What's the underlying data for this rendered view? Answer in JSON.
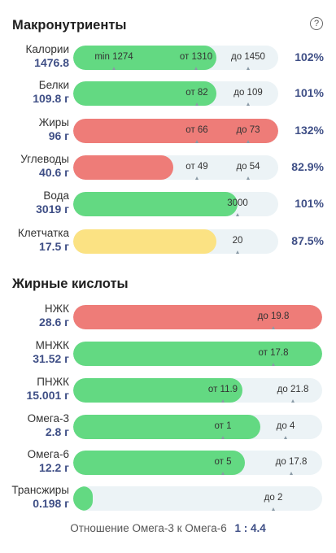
{
  "help_icon": "help-circle-icon",
  "macro": {
    "title": "Макронутриенты",
    "items": [
      {
        "name": "Калории",
        "amount": "1476.8",
        "percent": "102%",
        "fill_color": "green",
        "fill_fraction": 0.7,
        "marks": [
          {
            "text": "min 1274"
          },
          {
            "text": "от 1310"
          },
          {
            "text": "до 1450"
          }
        ]
      },
      {
        "name": "Белки",
        "amount": "109.8 г",
        "percent": "101%",
        "fill_color": "green",
        "fill_fraction": 0.7,
        "marks": [
          {
            "text": "от 82"
          },
          {
            "text": "до 109"
          }
        ]
      },
      {
        "name": "Жиры",
        "amount": "96 г",
        "percent": "132%",
        "fill_color": "red",
        "fill_fraction": 1.0,
        "marks": [
          {
            "text": "от 66"
          },
          {
            "text": "до 73"
          }
        ]
      },
      {
        "name": "Углеводы",
        "amount": "40.6 г",
        "percent": "82.9%",
        "fill_color": "red",
        "fill_fraction": 0.49,
        "marks": [
          {
            "text": "от 49"
          },
          {
            "text": "до 54"
          }
        ]
      },
      {
        "name": "Вода",
        "amount": "3019 г",
        "percent": "101%",
        "fill_color": "green",
        "fill_fraction": 0.8,
        "marks": [
          {
            "text": "3000"
          }
        ]
      },
      {
        "name": "Клетчатка",
        "amount": "17.5 г",
        "percent": "87.5%",
        "fill_color": "yellow",
        "fill_fraction": 0.7,
        "marks": [
          {
            "text": "20"
          }
        ]
      }
    ]
  },
  "fats": {
    "title": "Жирные кислоты",
    "items": [
      {
        "name": "НЖК",
        "amount": "28.6 г",
        "fill_color": "red",
        "fill_fraction": 1.0,
        "marks": [
          {
            "text": "до 19.8"
          }
        ]
      },
      {
        "name": "МНЖК",
        "amount": "31.52 г",
        "fill_color": "green",
        "fill_fraction": 1.0,
        "marks": [
          {
            "text": "от 17.8"
          }
        ]
      },
      {
        "name": "ПНЖК",
        "amount": "15.001 г",
        "fill_color": "green",
        "fill_fraction": 0.68,
        "marks": [
          {
            "text": "от 11.9"
          },
          {
            "text": "до 21.8"
          }
        ]
      },
      {
        "name": "Омега-3",
        "amount": "2.8 г",
        "fill_color": "green",
        "fill_fraction": 0.75,
        "marks": [
          {
            "text": "от 1"
          },
          {
            "text": "до 4"
          }
        ]
      },
      {
        "name": "Омега-6",
        "amount": "12.2 г",
        "fill_color": "green",
        "fill_fraction": 0.69,
        "marks": [
          {
            "text": "от 5"
          },
          {
            "text": "до 17.8"
          }
        ]
      },
      {
        "name": "Трансжиры",
        "amount": "0.198 г",
        "fill_color": "green",
        "fill_fraction": 0.08,
        "marks": [
          {
            "text": "до 2"
          }
        ]
      }
    ]
  },
  "ratio": {
    "label": "Отношение Омега-3 к Омега-6",
    "value": "1 : 4.4"
  }
}
